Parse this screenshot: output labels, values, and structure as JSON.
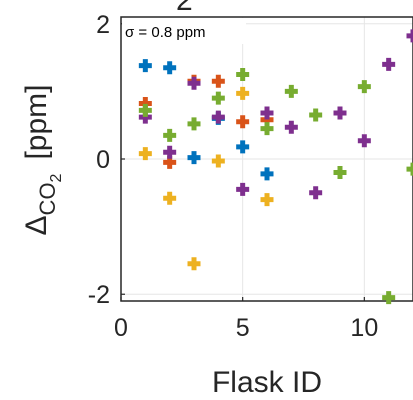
{
  "chart_data": {
    "type": "scatter",
    "title": "",
    "xlabel": "Flask ID",
    "ylabel": "Δ",
    "ylabel_subscript": "CO",
    "ylabel_subsubscript": "2",
    "ylabel_unit": "[ppm]",
    "annotation": "σ = 0.8 ppm",
    "xlim": [
      0,
      12
    ],
    "ylim": [
      -2.1,
      2.1
    ],
    "xticks": [
      0,
      5,
      10
    ],
    "yticks": [
      -2,
      0,
      2
    ],
    "xtick_labels": [
      "0",
      "5",
      "10"
    ],
    "ytick_labels": [
      "-2",
      "0",
      "2"
    ],
    "grid": true,
    "marker": "+",
    "series": [
      {
        "color": "#0072BD",
        "x": [
          1,
          2,
          3,
          4,
          5,
          6
        ],
        "y": [
          1.38,
          1.35,
          0.02,
          0.6,
          0.18,
          -0.22
        ]
      },
      {
        "color": "#D95319",
        "x": [
          1,
          2,
          3,
          4,
          5,
          6
        ],
        "y": [
          0.82,
          -0.05,
          1.15,
          1.15,
          0.55,
          0.58
        ]
      },
      {
        "color": "#EDB120",
        "x": [
          1,
          2,
          3,
          4,
          5,
          6
        ],
        "y": [
          0.08,
          -0.58,
          -1.55,
          -0.03,
          0.97,
          -0.6
        ]
      },
      {
        "color": "#7E2F8E",
        "x": [
          1,
          2,
          3,
          4,
          5,
          6,
          7,
          8,
          9,
          10,
          11,
          12
        ],
        "y": [
          0.62,
          0.1,
          1.12,
          0.62,
          -0.45,
          0.68,
          0.47,
          -0.5,
          0.68,
          0.27,
          1.4,
          1.82
        ]
      },
      {
        "color": "#77AC30",
        "x": [
          1,
          2,
          3,
          4,
          5,
          6,
          7,
          8,
          9,
          10,
          11,
          12
        ],
        "y": [
          0.72,
          0.35,
          0.52,
          0.9,
          1.25,
          0.45,
          1.0,
          0.65,
          -0.2,
          1.07,
          -2.05,
          -0.15
        ]
      }
    ]
  }
}
